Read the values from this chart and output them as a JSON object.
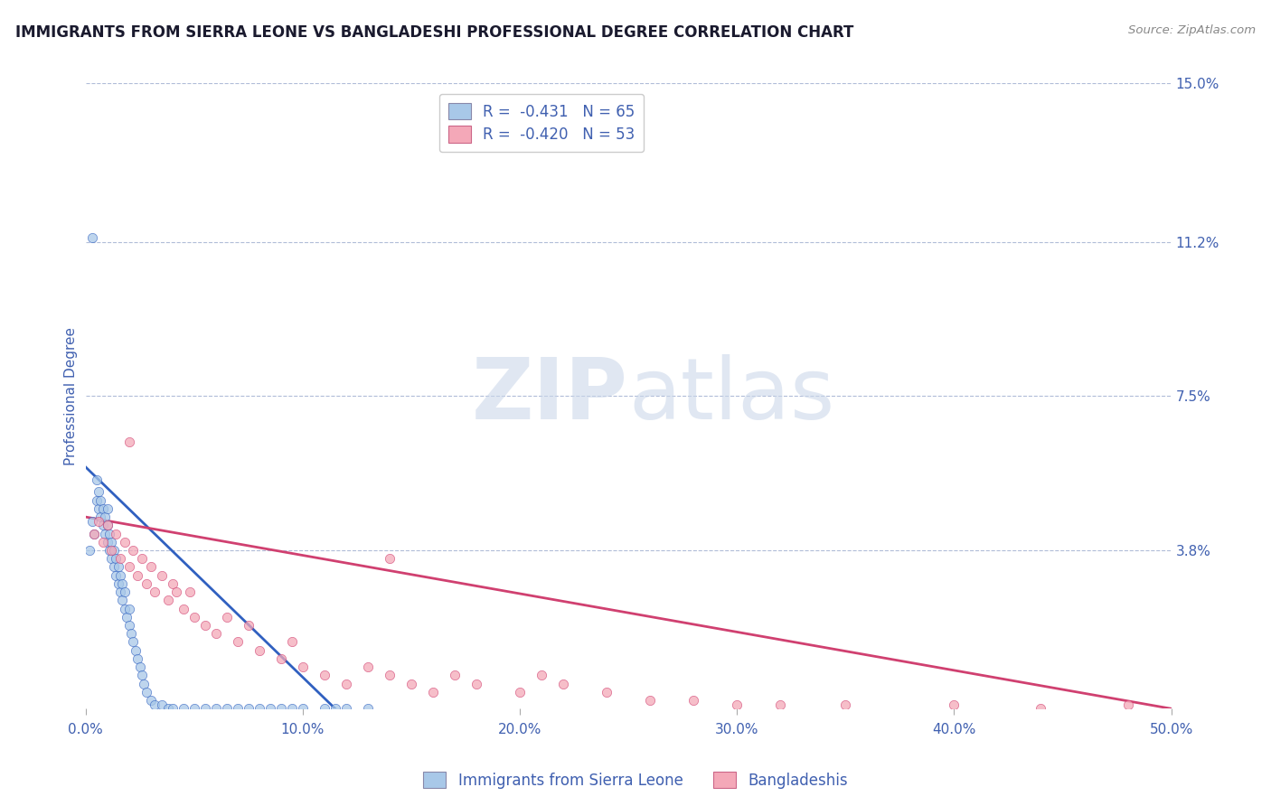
{
  "title": "IMMIGRANTS FROM SIERRA LEONE VS BANGLADESHI PROFESSIONAL DEGREE CORRELATION CHART",
  "source_text": "Source: ZipAtlas.com",
  "ylabel": "Professional Degree",
  "xlim": [
    0.0,
    0.5
  ],
  "ylim": [
    0.0,
    0.15
  ],
  "yticks": [
    0.0,
    0.038,
    0.075,
    0.112,
    0.15
  ],
  "ytick_labels": [
    "",
    "3.8%",
    "7.5%",
    "11.2%",
    "15.0%"
  ],
  "xtick_labels": [
    "0.0%",
    "10.0%",
    "20.0%",
    "30.0%",
    "40.0%",
    "50.0%"
  ],
  "xticks": [
    0.0,
    0.1,
    0.2,
    0.3,
    0.4,
    0.5
  ],
  "series1_label": "Immigrants from Sierra Leone",
  "series1_color": "#a8c8e8",
  "series1_R": "-0.431",
  "series1_N": "65",
  "series2_label": "Bangladeshis",
  "series2_color": "#f4a8b8",
  "series2_R": "-0.420",
  "series2_N": "53",
  "trend1_color": "#3060c0",
  "trend2_color": "#d04070",
  "watermark_zip": "ZIP",
  "watermark_atlas": "atlas",
  "background_color": "#ffffff",
  "grid_color": "#b0bcd8",
  "title_color": "#1a1a2e",
  "axis_label_color": "#4060b0",
  "tick_label_color": "#4060b0",
  "series1_scatter_x": [
    0.002,
    0.003,
    0.004,
    0.005,
    0.005,
    0.006,
    0.006,
    0.007,
    0.007,
    0.008,
    0.008,
    0.009,
    0.009,
    0.01,
    0.01,
    0.01,
    0.011,
    0.011,
    0.012,
    0.012,
    0.013,
    0.013,
    0.014,
    0.014,
    0.015,
    0.015,
    0.016,
    0.016,
    0.017,
    0.017,
    0.018,
    0.018,
    0.019,
    0.02,
    0.02,
    0.021,
    0.022,
    0.023,
    0.024,
    0.025,
    0.026,
    0.027,
    0.028,
    0.03,
    0.032,
    0.035,
    0.038,
    0.04,
    0.045,
    0.05,
    0.055,
    0.06,
    0.065,
    0.07,
    0.075,
    0.08,
    0.085,
    0.09,
    0.095,
    0.1,
    0.11,
    0.115,
    0.12,
    0.13,
    0.003
  ],
  "series1_scatter_y": [
    0.038,
    0.045,
    0.042,
    0.05,
    0.055,
    0.048,
    0.052,
    0.046,
    0.05,
    0.044,
    0.048,
    0.042,
    0.046,
    0.04,
    0.044,
    0.048,
    0.038,
    0.042,
    0.036,
    0.04,
    0.034,
    0.038,
    0.032,
    0.036,
    0.03,
    0.034,
    0.028,
    0.032,
    0.026,
    0.03,
    0.024,
    0.028,
    0.022,
    0.02,
    0.024,
    0.018,
    0.016,
    0.014,
    0.012,
    0.01,
    0.008,
    0.006,
    0.004,
    0.002,
    0.001,
    0.001,
    0.0,
    0.0,
    0.0,
    0.0,
    0.0,
    0.0,
    0.0,
    0.0,
    0.0,
    0.0,
    0.0,
    0.0,
    0.0,
    0.0,
    0.0,
    0.0,
    0.0,
    0.0,
    0.113
  ],
  "series2_scatter_x": [
    0.004,
    0.006,
    0.008,
    0.01,
    0.012,
    0.014,
    0.016,
    0.018,
    0.02,
    0.022,
    0.024,
    0.026,
    0.028,
    0.03,
    0.032,
    0.035,
    0.038,
    0.04,
    0.042,
    0.045,
    0.048,
    0.05,
    0.055,
    0.06,
    0.065,
    0.07,
    0.075,
    0.08,
    0.09,
    0.095,
    0.1,
    0.11,
    0.12,
    0.13,
    0.14,
    0.15,
    0.16,
    0.17,
    0.18,
    0.2,
    0.21,
    0.22,
    0.24,
    0.26,
    0.28,
    0.3,
    0.32,
    0.35,
    0.4,
    0.44,
    0.48,
    0.14,
    0.02
  ],
  "series2_scatter_y": [
    0.042,
    0.045,
    0.04,
    0.044,
    0.038,
    0.042,
    0.036,
    0.04,
    0.034,
    0.038,
    0.032,
    0.036,
    0.03,
    0.034,
    0.028,
    0.032,
    0.026,
    0.03,
    0.028,
    0.024,
    0.028,
    0.022,
    0.02,
    0.018,
    0.022,
    0.016,
    0.02,
    0.014,
    0.012,
    0.016,
    0.01,
    0.008,
    0.006,
    0.01,
    0.008,
    0.006,
    0.004,
    0.008,
    0.006,
    0.004,
    0.008,
    0.006,
    0.004,
    0.002,
    0.002,
    0.001,
    0.001,
    0.001,
    0.001,
    0.0,
    0.001,
    0.036,
    0.064
  ],
  "trend1_x": [
    0.0,
    0.115
  ],
  "trend1_y": [
    0.058,
    0.0
  ],
  "trend2_x": [
    0.0,
    0.5
  ],
  "trend2_y": [
    0.046,
    0.0
  ]
}
